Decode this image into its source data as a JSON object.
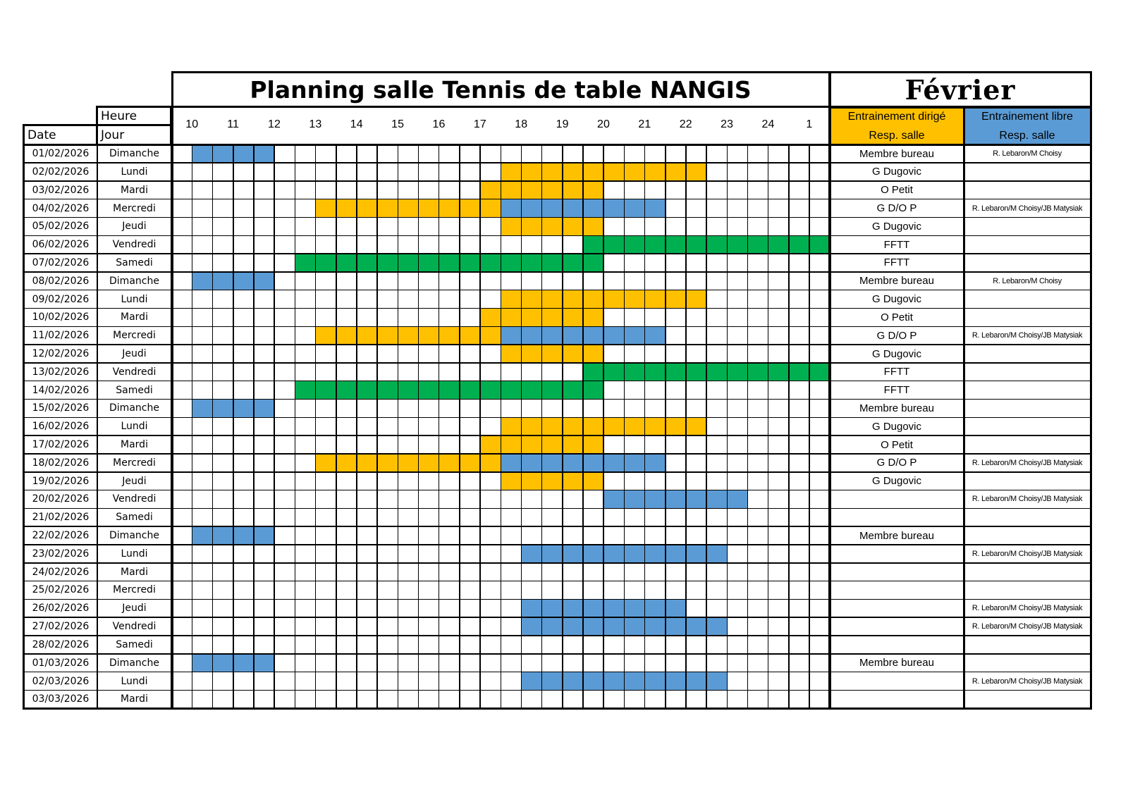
{
  "title": "Planning salle Tennis de table NANGIS",
  "month": "Février",
  "headers": {
    "heure": "Heure",
    "date": "Date",
    "jour": "Jour",
    "dirige_line1": "Entrainement dirigé",
    "dirige_line2": "Resp. salle",
    "libre_line1": "Entrainement libre",
    "libre_line2": "Resp. salle"
  },
  "hours": [
    "10",
    "11",
    "12",
    "13",
    "14",
    "15",
    "16",
    "17",
    "18",
    "19",
    "20",
    "21",
    "22",
    "23",
    "24",
    "1"
  ],
  "slots_per_hour": 2,
  "colors": {
    "libre": "#5B9BD5",
    "dirige": "#FFC000",
    "fftt": "#00B050"
  },
  "rows": [
    {
      "date": "01/02/2026",
      "jour": "Dimanche",
      "dirige": "Membre bureau",
      "libre": "R. Lebaron/M Choisy",
      "blocks": [
        {
          "type": "libre",
          "from": 1,
          "to": 4
        }
      ]
    },
    {
      "date": "02/02/2026",
      "jour": "Lundi",
      "dirige": "G Dugovic",
      "libre": "",
      "blocks": [
        {
          "type": "dirige",
          "from": 16,
          "to": 25
        }
      ]
    },
    {
      "date": "03/02/2026",
      "jour": "Mardi",
      "dirige": "O Petit",
      "libre": "",
      "blocks": [
        {
          "type": "dirige",
          "from": 15,
          "to": 20
        }
      ]
    },
    {
      "date": "04/02/2026",
      "jour": "Mercredi",
      "dirige": "G D/O P",
      "libre": "R. Lebaron/M Choisy/JB Matysiak",
      "blocks": [
        {
          "type": "dirige",
          "from": 7,
          "to": 15
        },
        {
          "type": "libre",
          "from": 16,
          "to": 23
        }
      ]
    },
    {
      "date": "05/02/2026",
      "jour": "Jeudi",
      "dirige": "G Dugovic",
      "libre": "",
      "blocks": [
        {
          "type": "dirige",
          "from": 16,
          "to": 20
        }
      ]
    },
    {
      "date": "06/02/2026",
      "jour": "Vendredi",
      "dirige": "FFTT",
      "libre": "",
      "blocks": [
        {
          "type": "fftt",
          "from": 20,
          "to": 31
        }
      ]
    },
    {
      "date": "07/02/2026",
      "jour": "Samedi",
      "dirige": "FFTT",
      "libre": "",
      "blocks": [
        {
          "type": "fftt",
          "from": 6,
          "to": 20
        }
      ]
    },
    {
      "date": "08/02/2026",
      "jour": "Dimanche",
      "dirige": "Membre bureau",
      "libre": "R. Lebaron/M Choisy",
      "blocks": [
        {
          "type": "libre",
          "from": 1,
          "to": 4
        }
      ]
    },
    {
      "date": "09/02/2026",
      "jour": "Lundi",
      "dirige": "G Dugovic",
      "libre": "",
      "blocks": [
        {
          "type": "dirige",
          "from": 16,
          "to": 25
        }
      ]
    },
    {
      "date": "10/02/2026",
      "jour": "Mardi",
      "dirige": "O Petit",
      "libre": "",
      "blocks": [
        {
          "type": "dirige",
          "from": 15,
          "to": 20
        }
      ]
    },
    {
      "date": "11/02/2026",
      "jour": "Mercredi",
      "dirige": "G D/O P",
      "libre": "R. Lebaron/M Choisy/JB Matysiak",
      "blocks": [
        {
          "type": "dirige",
          "from": 7,
          "to": 15
        },
        {
          "type": "libre",
          "from": 16,
          "to": 23
        }
      ]
    },
    {
      "date": "12/02/2026",
      "jour": "Jeudi",
      "dirige": "G Dugovic",
      "libre": "",
      "blocks": [
        {
          "type": "dirige",
          "from": 16,
          "to": 20
        }
      ]
    },
    {
      "date": "13/02/2026",
      "jour": "Vendredi",
      "dirige": "FFTT",
      "libre": "",
      "blocks": [
        {
          "type": "fftt",
          "from": 20,
          "to": 31
        }
      ]
    },
    {
      "date": "14/02/2026",
      "jour": "Samedi",
      "dirige": "FFTT",
      "libre": "",
      "blocks": [
        {
          "type": "fftt",
          "from": 6,
          "to": 20
        }
      ]
    },
    {
      "date": "15/02/2026",
      "jour": "Dimanche",
      "dirige": "Membre bureau",
      "libre": "",
      "blocks": [
        {
          "type": "libre",
          "from": 1,
          "to": 4
        }
      ]
    },
    {
      "date": "16/02/2026",
      "jour": "Lundi",
      "dirige": "G Dugovic",
      "libre": "",
      "blocks": [
        {
          "type": "dirige",
          "from": 16,
          "to": 25
        }
      ]
    },
    {
      "date": "17/02/2026",
      "jour": "Mardi",
      "dirige": "O Petit",
      "libre": "",
      "blocks": [
        {
          "type": "dirige",
          "from": 15,
          "to": 20
        }
      ]
    },
    {
      "date": "18/02/2026",
      "jour": "Mercredi",
      "dirige": "G D/O P",
      "libre": "R. Lebaron/M Choisy/JB Matysiak",
      "blocks": [
        {
          "type": "dirige",
          "from": 7,
          "to": 15
        },
        {
          "type": "libre",
          "from": 16,
          "to": 23
        }
      ]
    },
    {
      "date": "19/02/2026",
      "jour": "Jeudi",
      "dirige": "G Dugovic",
      "libre": "",
      "blocks": [
        {
          "type": "dirige",
          "from": 16,
          "to": 20
        }
      ]
    },
    {
      "date": "20/02/2026",
      "jour": "Vendredi",
      "dirige": "",
      "libre": "R. Lebaron/M Choisy/JB Matysiak",
      "blocks": [
        {
          "type": "libre",
          "from": 21,
          "to": 27
        }
      ]
    },
    {
      "date": "21/02/2026",
      "jour": "Samedi",
      "dirige": "",
      "libre": "",
      "blocks": []
    },
    {
      "date": "22/02/2026",
      "jour": "Dimanche",
      "dirige": "Membre bureau",
      "libre": "",
      "blocks": [
        {
          "type": "libre",
          "from": 1,
          "to": 4
        }
      ]
    },
    {
      "date": "23/02/2026",
      "jour": "Lundi",
      "dirige": "",
      "libre": "R. Lebaron/M Choisy/JB Matysiak",
      "blocks": [
        {
          "type": "libre",
          "from": 17,
          "to": 26
        }
      ]
    },
    {
      "date": "24/02/2026",
      "jour": "Mardi",
      "dirige": "",
      "libre": "",
      "blocks": []
    },
    {
      "date": "25/02/2026",
      "jour": "Mercredi",
      "dirige": "",
      "libre": "",
      "blocks": []
    },
    {
      "date": "26/02/2026",
      "jour": "Jeudi",
      "dirige": "",
      "libre": "R. Lebaron/M Choisy/JB Matysiak",
      "blocks": [
        {
          "type": "libre",
          "from": 17,
          "to": 24
        }
      ]
    },
    {
      "date": "27/02/2026",
      "jour": "Vendredi",
      "dirige": "",
      "libre": "R. Lebaron/M Choisy/JB Matysiak",
      "blocks": [
        {
          "type": "libre",
          "from": 17,
          "to": 26
        }
      ]
    },
    {
      "date": "28/02/2026",
      "jour": "Samedi",
      "dirige": "",
      "libre": "",
      "blocks": []
    },
    {
      "date": "01/03/2026",
      "jour": "Dimanche",
      "dirige": "Membre bureau",
      "libre": "",
      "blocks": [
        {
          "type": "libre",
          "from": 1,
          "to": 4
        }
      ]
    },
    {
      "date": "02/03/2026",
      "jour": "Lundi",
      "dirige": "",
      "libre": "R. Lebaron/M Choisy/JB Matysiak",
      "blocks": [
        {
          "type": "libre",
          "from": 17,
          "to": 26
        }
      ]
    },
    {
      "date": "03/03/2026",
      "jour": "Mardi",
      "dirige": "",
      "libre": "",
      "blocks": []
    }
  ]
}
